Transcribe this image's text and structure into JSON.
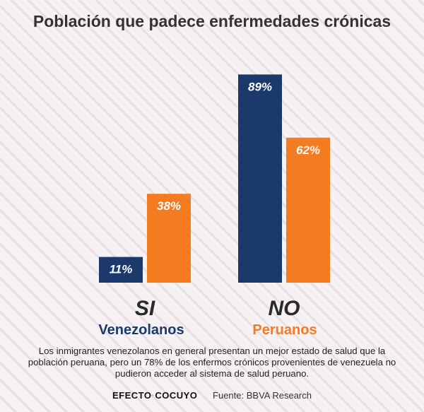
{
  "chart_data": {
    "type": "bar",
    "title": "Población que padece enfermedades crónicas",
    "categories": [
      "SI",
      "NO"
    ],
    "series": [
      {
        "name": "Venezolanos",
        "values": [
          11,
          89
        ],
        "labels": [
          "11%",
          "89%"
        ],
        "color": "#1b3a6b"
      },
      {
        "name": "Peruanos",
        "values": [
          38,
          62
        ],
        "labels": [
          "38%",
          "62%"
        ],
        "color": "#f47b20"
      }
    ],
    "ylim": [
      0,
      100
    ],
    "grid": false,
    "legend": "bottom"
  },
  "caption": "Los inmigrantes venezolanos en general presentan un mejor estado de salud que la población peruana, pero un 78% de los enfermos crónicos provenientes de venezuela no pudieron acceder al sistema de salud peruano.",
  "footer": {
    "logo_left": "EFECTO",
    "logo_dot": "·",
    "logo_right": "COCUYO",
    "source": "Fuente: BBVA Research"
  }
}
